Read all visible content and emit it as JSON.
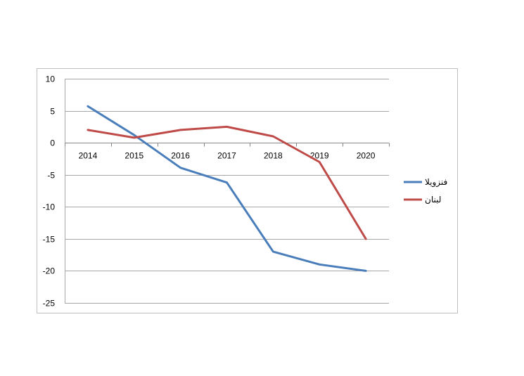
{
  "chart_data": {
    "type": "line",
    "title": "",
    "xlabel": "",
    "ylabel": "",
    "categories": [
      "2014",
      "2015",
      "2016",
      "2017",
      "2018",
      "2019",
      "2020"
    ],
    "ylim": [
      -25,
      10
    ],
    "yticks": [
      10,
      5,
      0,
      -5,
      -10,
      -15,
      -20,
      -25
    ],
    "grid": true,
    "legend_position": "right",
    "series": [
      {
        "name": "فنزويلا",
        "color": "#4a7ebb",
        "values": [
          5.7,
          1.2,
          -3.9,
          -6.2,
          -17.0,
          -19.0,
          -20.0
        ]
      },
      {
        "name": "لبنان",
        "color": "#be4b48",
        "values": [
          2.0,
          0.8,
          2.0,
          2.5,
          1.0,
          -3.0,
          -15.0
        ]
      }
    ]
  }
}
